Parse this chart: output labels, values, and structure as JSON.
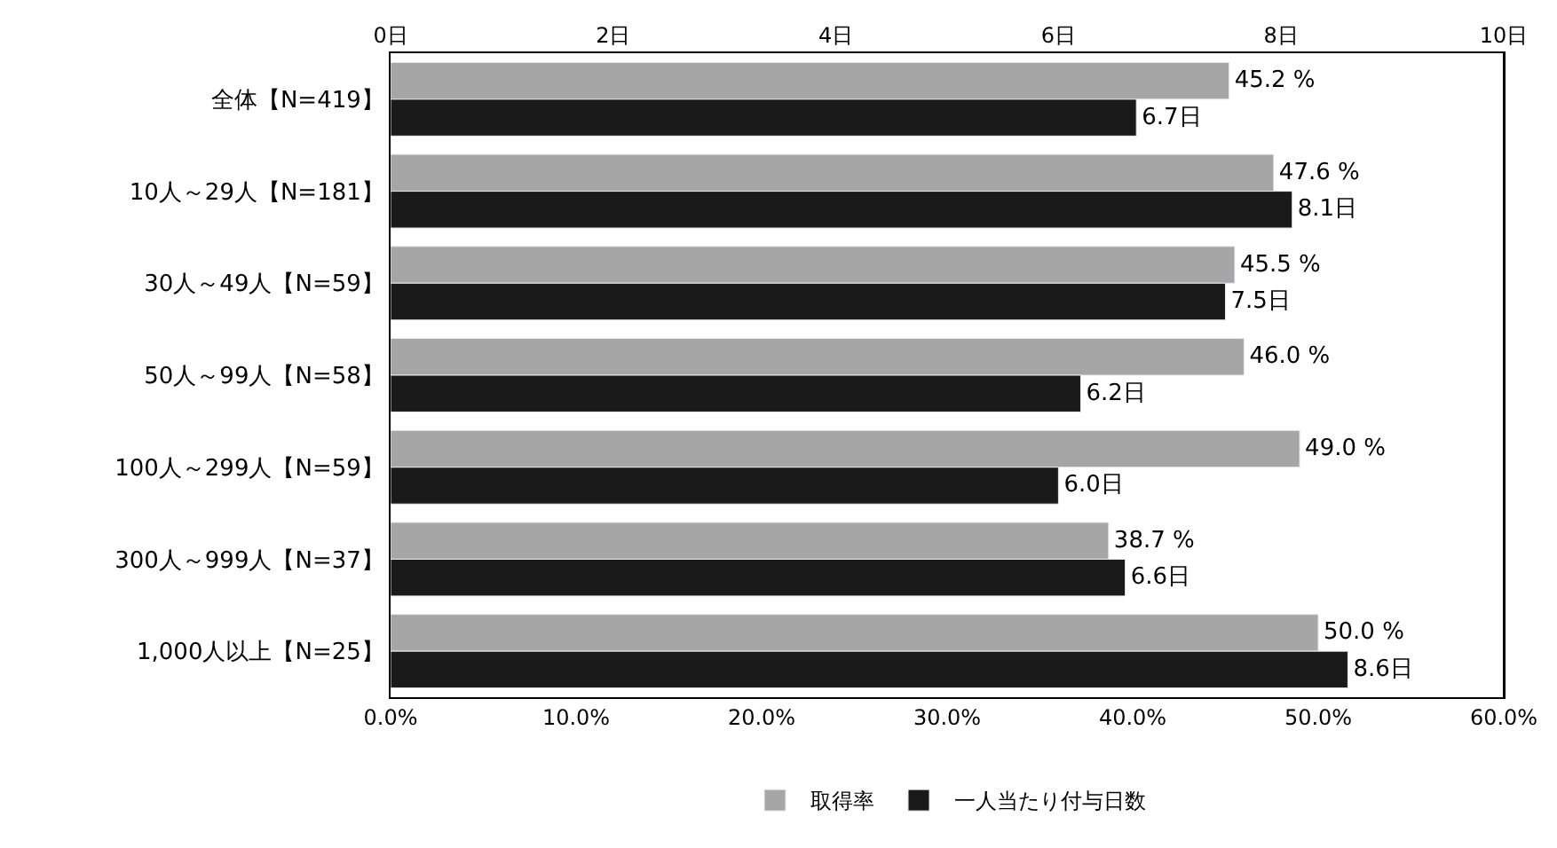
{
  "chart_data": {
    "type": "bar",
    "orientation": "horizontal",
    "categories": [
      "全体【N=419】",
      "10人～29人【N=181】",
      "30人～49人【N=59】",
      "50人～99人【N=58】",
      "100人～299人【N=59】",
      "300人～999人【N=37】",
      "1,000人以上【N=25】"
    ],
    "series": [
      {
        "name": "取得率",
        "color": "#a6a6a6",
        "values": [
          45.2,
          47.6,
          45.5,
          46.0,
          49.0,
          38.7,
          50.0
        ],
        "value_labels": [
          "45.2 %",
          "47.6 %",
          "45.5 %",
          "46.0 %",
          "49.0 %",
          "38.7 %",
          "50.0 %"
        ]
      },
      {
        "name": "一人当たり付与日数",
        "color": "#1a1a1a",
        "axis": "x2",
        "values": [
          6.7,
          8.1,
          7.5,
          6.2,
          6.0,
          6.6,
          8.6
        ],
        "value_labels": [
          "6.7日",
          "8.1日",
          "7.5日",
          "6.2日",
          "6.0日",
          "6.6日",
          "8.6日"
        ]
      }
    ],
    "xlim": [
      0,
      60
    ],
    "xticks": [
      {
        "value": 0,
        "label": "0.0%"
      },
      {
        "value": 10,
        "label": "10.0%"
      },
      {
        "value": 20,
        "label": "20.0%"
      },
      {
        "value": 30,
        "label": "30.0%"
      },
      {
        "value": 40,
        "label": "40.0%"
      },
      {
        "value": 50,
        "label": "50.0%"
      },
      {
        "value": 60,
        "label": "60.0%"
      }
    ],
    "x2lim": [
      0,
      10
    ],
    "x2ticks": [
      {
        "value": 0,
        "label": "0日"
      },
      {
        "value": 2,
        "label": "2日"
      },
      {
        "value": 4,
        "label": "4日"
      },
      {
        "value": 6,
        "label": "6日"
      },
      {
        "value": 8,
        "label": "8日"
      },
      {
        "value": 10,
        "label": "10日"
      }
    ],
    "legend": "bottom"
  }
}
